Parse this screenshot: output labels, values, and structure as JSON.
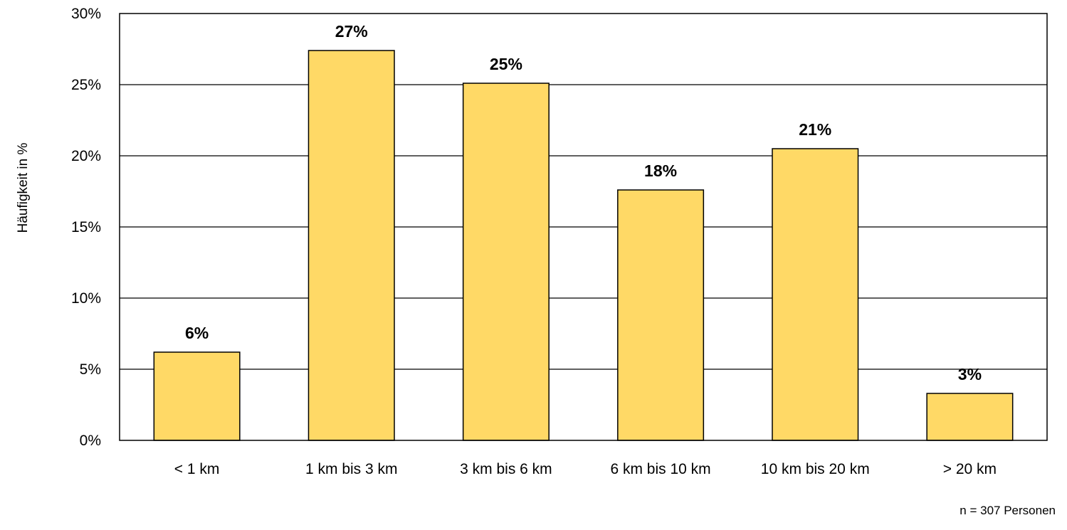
{
  "chart_data": {
    "type": "bar",
    "categories": [
      "< 1 km",
      "1 km bis 3 km",
      "3 km bis 6 km",
      "6 km bis 10 km",
      "10 km bis 20 km",
      "> 20 km"
    ],
    "values": [
      6.2,
      27.4,
      25.1,
      17.6,
      20.5,
      3.3
    ],
    "data_labels": [
      "6%",
      "27%",
      "25%",
      "18%",
      "21%",
      "3%"
    ],
    "title": "",
    "xlabel": "",
    "ylabel": "Häufigkeit in %",
    "ylim": [
      0,
      30
    ],
    "yticks": [
      0,
      5,
      10,
      15,
      20,
      25,
      30
    ],
    "ytick_labels": [
      "0%",
      "5%",
      "10%",
      "15%",
      "20%",
      "25%",
      "30%"
    ],
    "grid": true,
    "bar_color": "#FFD966",
    "note": "n = 307 Personen"
  }
}
